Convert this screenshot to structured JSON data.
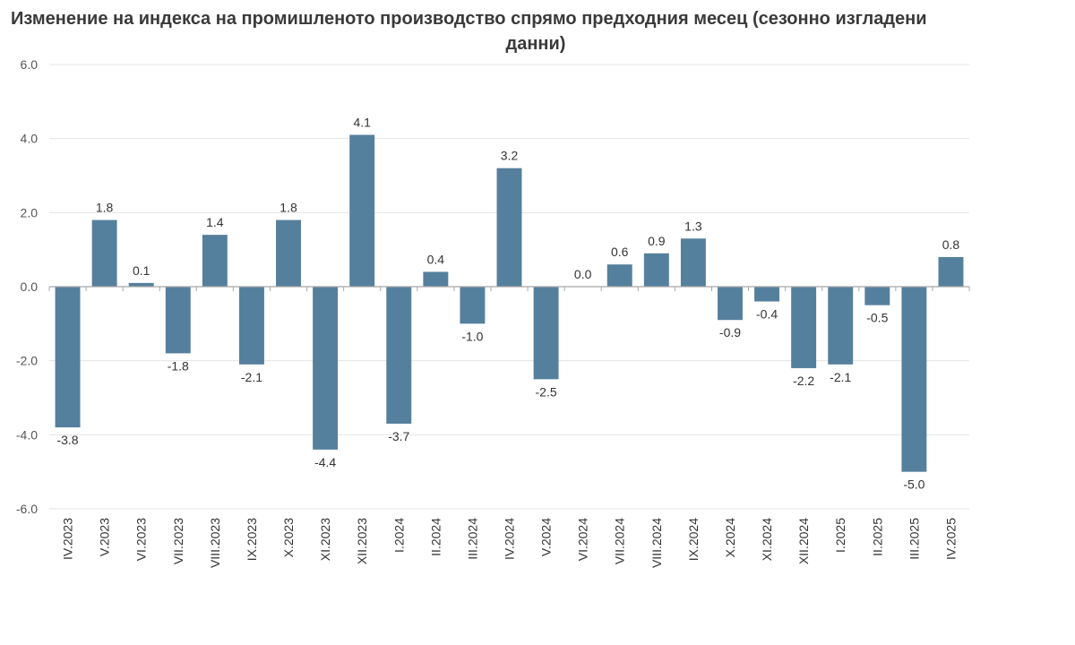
{
  "chart_data": {
    "type": "bar",
    "title_line1": "Изменение на индекса на промишленото  производство спрямо предходния месец (сезонно изгладени",
    "title_line2": "данни)",
    "xlabel": "",
    "ylabel": "",
    "ylim": [
      -6,
      6
    ],
    "y_ticks": [
      "6.0",
      "4.0",
      "2.0",
      "0.0",
      "-2.0",
      "-4.0",
      "-6.0"
    ],
    "y_tick_values": [
      6,
      4,
      2,
      0,
      -2,
      -4,
      -6
    ],
    "grid": true,
    "legend": "none",
    "bar_color": "#55809d",
    "categories": [
      "IV.2023",
      "V.2023",
      "VI.2023",
      "VII.2023",
      "VIII.2023",
      "IX.2023",
      "X.2023",
      "XI.2023",
      "XII.2023",
      "I.2024",
      "II.2024",
      "III.2024",
      "IV.2024",
      "V.2024",
      "VI.2024",
      "VII.2024",
      "VIII.2024",
      "IX.2024",
      "X.2024",
      "XI.2024",
      "XII.2024",
      "I.2025",
      "II.2025",
      "III.2025",
      "IV.2025"
    ],
    "values": [
      -3.8,
      1.8,
      0.1,
      -1.8,
      1.4,
      -2.1,
      1.8,
      -4.4,
      4.1,
      -3.7,
      0.4,
      -1.0,
      3.2,
      -2.5,
      0.0,
      0.6,
      0.9,
      1.3,
      -0.9,
      -0.4,
      -2.2,
      -2.1,
      -0.5,
      -5.0,
      0.8
    ],
    "value_labels": [
      "-3.8",
      "1.8",
      "0.1",
      "-1.8",
      "1.4",
      "-2.1",
      "1.8",
      "-4.4",
      "4.1",
      "-3.7",
      "0.4",
      "-1.0",
      "3.2",
      "-2.5",
      "0.0",
      "0.6",
      "0.9",
      "1.3",
      "-0.9",
      "-0.4",
      "-2.2",
      "-2.1",
      "-0.5",
      "-5.0",
      "0.8"
    ]
  }
}
